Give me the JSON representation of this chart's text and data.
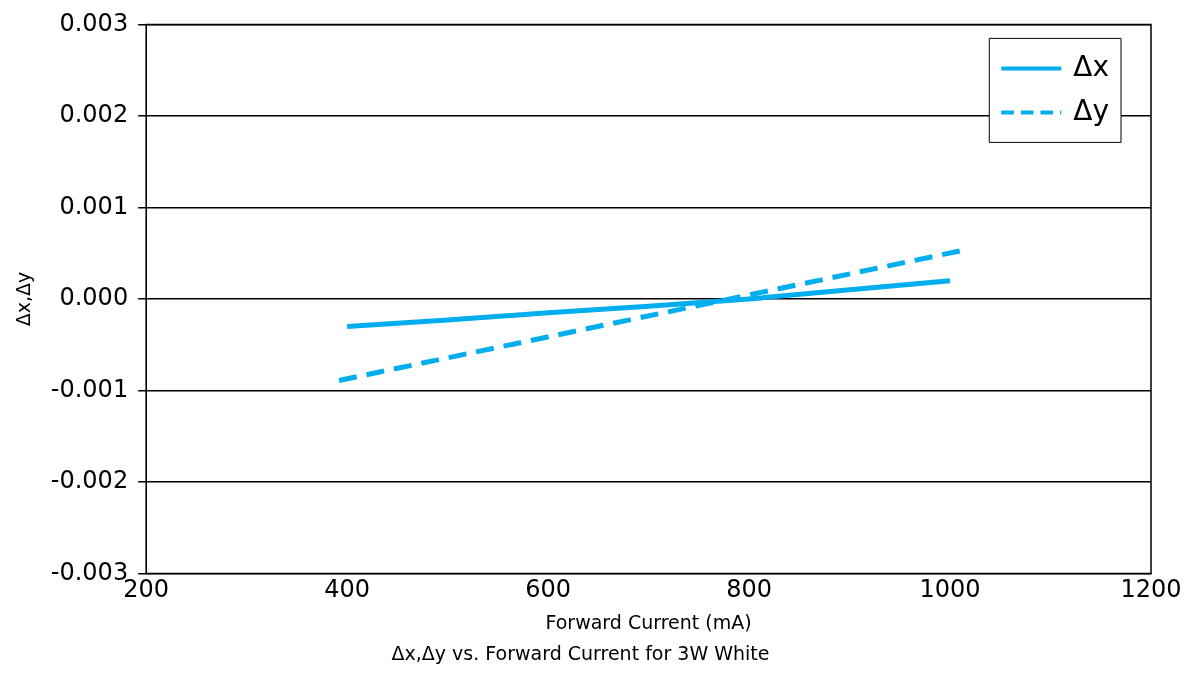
{
  "chart_data": {
    "type": "line",
    "title": "Δx,Δy vs. Forward Current for 3W White",
    "xlabel": "Forward Current (mA)",
    "ylabel": "Δx,Δy",
    "xlim": [
      200,
      1200
    ],
    "xticks": [
      200,
      400,
      600,
      800,
      1000,
      1200
    ],
    "ylim": [
      -0.003,
      0.003
    ],
    "yticks": [
      -0.003,
      -0.002,
      -0.001,
      {
        "value": 0,
        "label": "0.000"
      },
      0.001,
      0.002,
      0.003
    ],
    "grid": "y",
    "legend": "top right",
    "marker": "none",
    "series": [
      {
        "name": "Δx",
        "color": "#00aeef",
        "line_style": "solid",
        "x": [
          400,
          500,
          600,
          700,
          800,
          900,
          1000
        ],
        "values": [
          -0.0003,
          -0.00023,
          -0.00015,
          -8e-05,
          0,
          0.0001,
          0.0002
        ]
      },
      {
        "name": "Δy",
        "color": "#00aeef",
        "line_style": "dashed",
        "x": [
          392,
          1012
        ],
        "values": [
          -0.00089,
          0.00053
        ]
      }
    ]
  }
}
